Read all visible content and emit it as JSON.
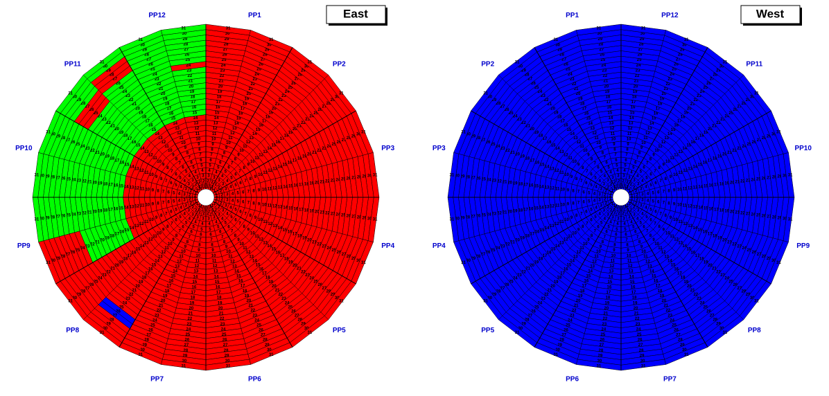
{
  "rings": [
    1,
    2,
    3,
    4,
    5,
    6,
    7,
    8,
    9,
    10,
    11,
    12,
    13,
    14,
    15,
    16,
    17,
    18,
    19,
    20,
    21,
    22,
    23,
    24,
    25,
    26,
    27,
    28,
    29,
    30,
    31
  ],
  "discs": [
    {
      "title": "East",
      "direction": 1,
      "fill": "#ff0000",
      "pp_labels": [
        "PP1",
        "PP2",
        "PP3",
        "PP4",
        "PP5",
        "PP6",
        "PP7",
        "PP8",
        "PP9",
        "PP10",
        "PP11",
        "PP12"
      ],
      "patches": [
        {
          "sectors": [
            17,
            23
          ],
          "rings": [
            15,
            31
          ],
          "color": "#00ff00"
        },
        {
          "sectors": [
            16,
            16
          ],
          "rings": [
            15,
            23
          ],
          "color": "#00ff00"
        },
        {
          "sectors": [
            21,
            21
          ],
          "rings": [
            27,
            29
          ],
          "color": "#ff0000"
        },
        {
          "sectors": [
            20,
            20
          ],
          "rings": [
            25,
            27
          ],
          "color": "#ff0000"
        },
        {
          "sectors": [
            23,
            23
          ],
          "rings": [
            24,
            24
          ],
          "color": "#ff0000"
        },
        {
          "sectors": [
            14,
            14
          ],
          "rings": [
            26,
            27
          ],
          "color": "#0000ff"
        }
      ]
    },
    {
      "title": "West",
      "direction": -1,
      "fill": "#0000ff",
      "pp_labels": [
        "PP1",
        "PP2",
        "PP3",
        "PP4",
        "PP5",
        "PP6",
        "PP7",
        "PP8",
        "PP9",
        "PP10",
        "PP11",
        "PP12"
      ],
      "patches": []
    }
  ]
}
